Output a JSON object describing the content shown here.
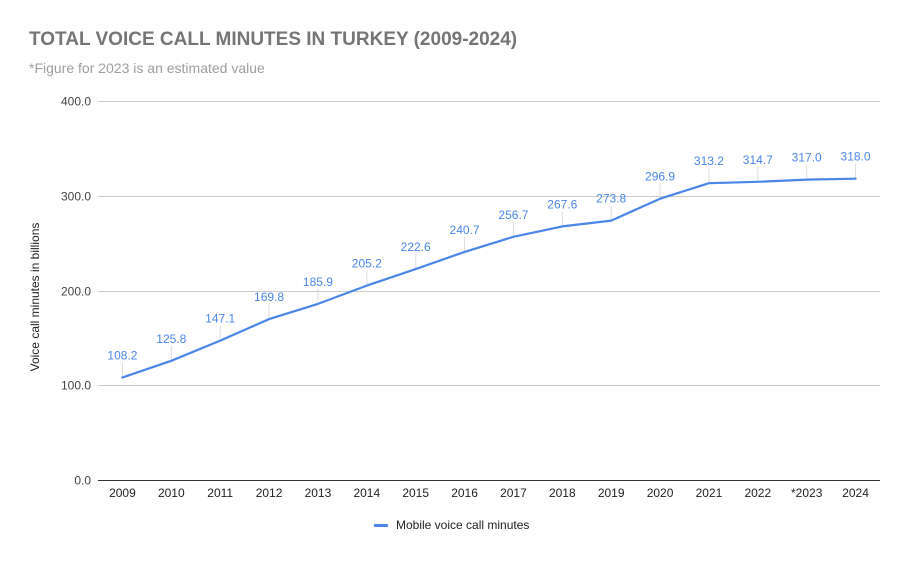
{
  "header": {
    "title": "TOTAL VOICE CALL MINUTES IN TURKEY (2009-2024)",
    "subtitle": "*Figure for 2023 is an estimated value"
  },
  "legend": {
    "items": [
      {
        "label": "Mobile voice call minutes",
        "color": "#4a86e8"
      }
    ]
  },
  "chart_data": {
    "type": "line",
    "title": "TOTAL VOICE CALL MINUTES IN TURKEY (2009-2024)",
    "subtitle": "*Figure for 2023 is an estimated value",
    "xlabel": "",
    "ylabel": "Voice call minutes in billions",
    "ylim": [
      0,
      400
    ],
    "yticks": [
      "0.0",
      "100.0",
      "200.0",
      "300.0",
      "400.0"
    ],
    "grid": true,
    "legend_position": "bottom",
    "categories": [
      "2009",
      "2010",
      "2011",
      "2012",
      "2013",
      "2014",
      "2015",
      "2016",
      "2017",
      "2018",
      "2019",
      "2020",
      "2021",
      "2022",
      "*2023",
      "2024"
    ],
    "series": [
      {
        "name": "Mobile voice call minutes",
        "color": "#4a86e8",
        "values": [
          108.2,
          125.8,
          147.1,
          169.8,
          185.9,
          205.2,
          222.6,
          240.7,
          256.7,
          267.6,
          273.8,
          296.9,
          313.2,
          314.7,
          317.0,
          318.0
        ],
        "labels": [
          "108.2",
          "125.8",
          "147.1",
          "169.8",
          "185.9",
          "205.2",
          "222.6",
          "240.7",
          "256.7",
          "267.6",
          "273.8",
          "296.9",
          "313.2",
          "314.7",
          "317.0",
          "318.0"
        ]
      }
    ]
  }
}
